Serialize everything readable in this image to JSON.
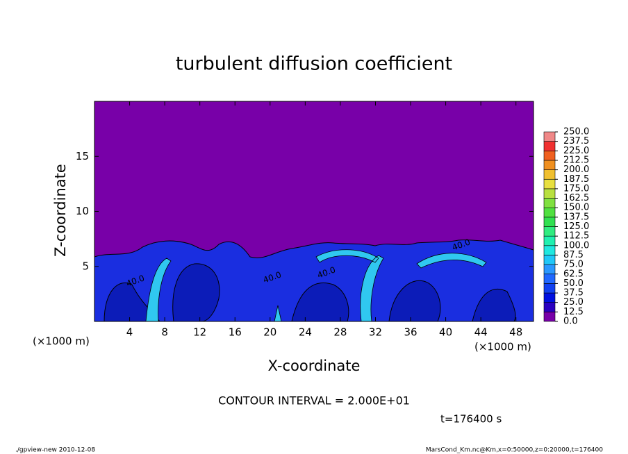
{
  "chart_data": {
    "type": "contour",
    "title": "turbulent diffusion coefficient",
    "x_label": "X-coordinate",
    "y_label": "Z-coordinate",
    "x_unit": "(×1000 m)",
    "y_unit": "(×1000 m)",
    "xlim": [
      0,
      50
    ],
    "xticks": [
      4,
      8,
      12,
      16,
      20,
      24,
      28,
      32,
      36,
      40,
      44,
      48
    ],
    "ylim": [
      0,
      20
    ],
    "yticks": [
      5,
      10,
      15
    ],
    "contour_labels": [
      {
        "value": 40,
        "label": "40.0"
      },
      {
        "value": 40,
        "label": "40.0"
      },
      {
        "value": 40,
        "label": "40.0"
      },
      {
        "value": 40,
        "label": "40.0"
      }
    ],
    "colorbar_lim": [
      0,
      250
    ],
    "colorbar_ticks": [
      {
        "value": 0,
        "label": "0.0"
      },
      {
        "value": 12.5,
        "label": "12.5"
      },
      {
        "value": 25,
        "label": "25.0"
      },
      {
        "value": 37.5,
        "label": "37.5"
      },
      {
        "value": 50,
        "label": "50.0"
      },
      {
        "value": 62.5,
        "label": "62.5"
      },
      {
        "value": 75,
        "label": "75.0"
      },
      {
        "value": 87.5,
        "label": "87.5"
      },
      {
        "value": 100,
        "label": "100.0"
      },
      {
        "value": 112.5,
        "label": "112.5"
      },
      {
        "value": 125,
        "label": "125.0"
      },
      {
        "value": 137.5,
        "label": "137.5"
      },
      {
        "value": 150,
        "label": "150.0"
      },
      {
        "value": 162.5,
        "label": "162.5"
      },
      {
        "value": 175,
        "label": "175.0"
      },
      {
        "value": 187.5,
        "label": "187.5"
      },
      {
        "value": 200,
        "label": "200.0"
      },
      {
        "value": 212.5,
        "label": "212.5"
      },
      {
        "value": 225,
        "label": "225.0"
      },
      {
        "value": 237.5,
        "label": "237.5"
      },
      {
        "value": 250,
        "label": "250.0"
      }
    ],
    "colorbar_colors": [
      "#7800a8",
      "#2a00c0",
      "#0010e0",
      "#1040f0",
      "#2068ff",
      "#2a98ff",
      "#20c8f8",
      "#20e8e0",
      "#20f0b0",
      "#30ec80",
      "#30e050",
      "#50e040",
      "#80e040",
      "#b8e040",
      "#e8e040",
      "#f0c030",
      "#f09020",
      "#f06020",
      "#f03030",
      "#f08888"
    ],
    "contour_interval": "CONTOUR INTERVAL = 2.000E+01",
    "time_label": "t=176400 s",
    "footer_left": "./gpview-new  2010-12-08",
    "footer_right": "MarsCond_Km.nc@Km,x=0:50000,z=0:20000,t=176400"
  }
}
